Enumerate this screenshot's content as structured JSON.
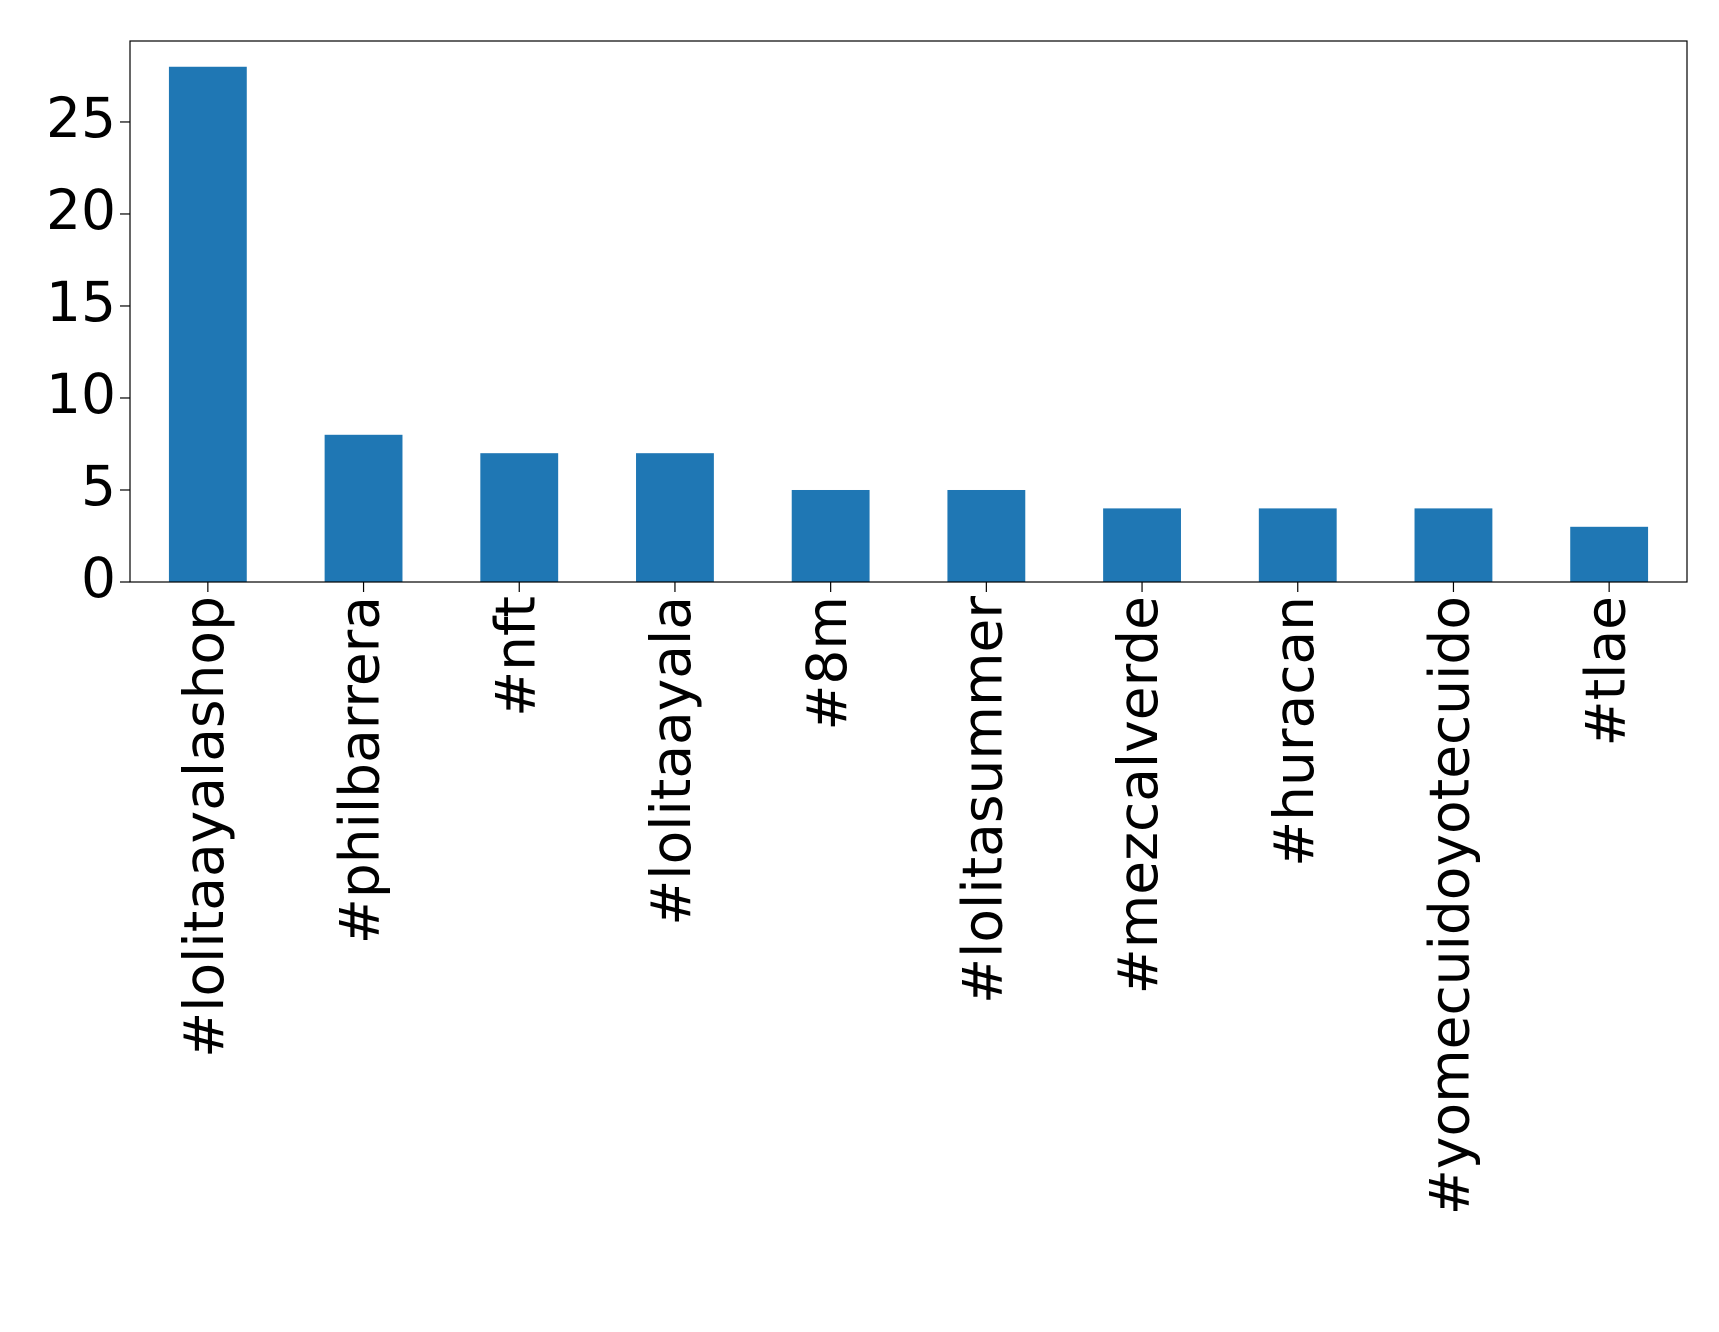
{
  "chart_data": {
    "type": "bar",
    "categories": [
      "#lolitaayalashop",
      "#philbarrera",
      "#nft",
      "#lolitaayala",
      "#8m",
      "#lolitasummer",
      "#mezcalverde",
      "#huracan",
      "#yomecuidoyotecuido",
      "#tlae"
    ],
    "values": [
      28,
      8,
      7,
      7,
      5,
      5,
      4,
      4,
      4,
      3
    ],
    "color": "#1f77b4",
    "ylim": [
      0,
      29.4
    ],
    "yticks": [
      0,
      5,
      10,
      15,
      20,
      25
    ],
    "grid": false
  }
}
